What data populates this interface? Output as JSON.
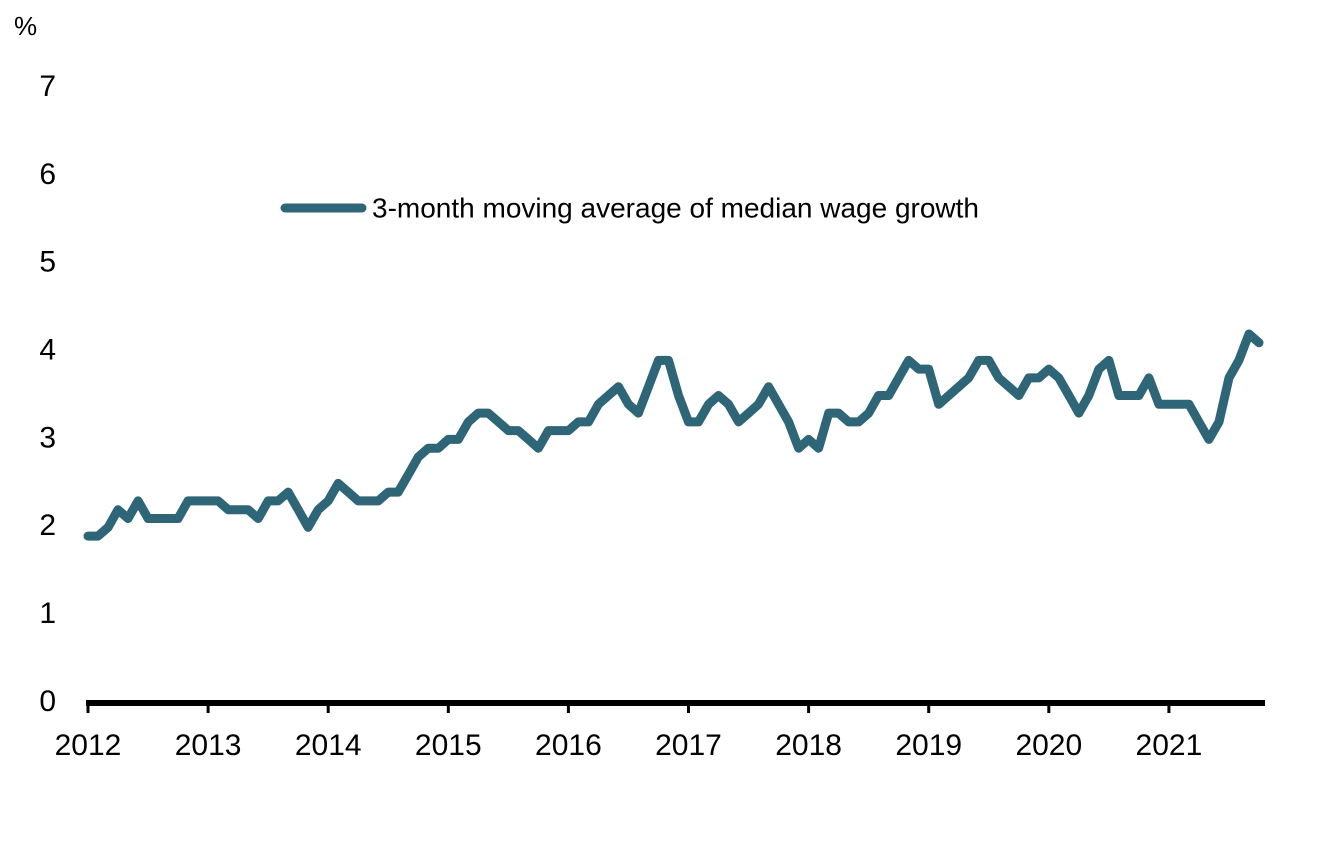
{
  "chart_data": {
    "type": "line",
    "y_axis_label": "%",
    "x": [
      2012,
      2012.083,
      2012.167,
      2012.25,
      2012.333,
      2012.417,
      2012.5,
      2012.583,
      2012.667,
      2012.75,
      2012.833,
      2012.917,
      2013,
      2013.083,
      2013.167,
      2013.25,
      2013.333,
      2013.417,
      2013.5,
      2013.583,
      2013.667,
      2013.75,
      2013.833,
      2013.917,
      2014,
      2014.083,
      2014.167,
      2014.25,
      2014.333,
      2014.417,
      2014.5,
      2014.583,
      2014.667,
      2014.75,
      2014.833,
      2014.917,
      2015,
      2015.083,
      2015.167,
      2015.25,
      2015.333,
      2015.417,
      2015.5,
      2015.583,
      2015.667,
      2015.75,
      2015.833,
      2015.917,
      2016,
      2016.083,
      2016.167,
      2016.25,
      2016.333,
      2016.417,
      2016.5,
      2016.583,
      2016.667,
      2016.75,
      2016.833,
      2016.917,
      2017,
      2017.083,
      2017.167,
      2017.25,
      2017.333,
      2017.417,
      2017.5,
      2017.583,
      2017.667,
      2017.75,
      2017.833,
      2017.917,
      2018,
      2018.083,
      2018.167,
      2018.25,
      2018.333,
      2018.417,
      2018.5,
      2018.583,
      2018.667,
      2018.75,
      2018.833,
      2018.917,
      2019,
      2019.083,
      2019.167,
      2019.25,
      2019.333,
      2019.417,
      2019.5,
      2019.583,
      2019.667,
      2019.75,
      2019.833,
      2019.917,
      2020,
      2020.083,
      2020.167,
      2020.25,
      2020.333,
      2020.417,
      2020.5,
      2020.583,
      2020.667,
      2020.75,
      2020.833,
      2020.917,
      2021,
      2021.083,
      2021.167,
      2021.25,
      2021.333,
      2021.417,
      2021.5,
      2021.583,
      2021.667,
      2021.75
    ],
    "series": [
      {
        "name": "3-month moving average of median wage growth",
        "color": "#2e6677",
        "values": [
          1.9,
          1.9,
          2.0,
          2.2,
          2.1,
          2.3,
          2.1,
          2.1,
          2.1,
          2.1,
          2.3,
          2.3,
          2.3,
          2.3,
          2.2,
          2.2,
          2.2,
          2.1,
          2.3,
          2.3,
          2.4,
          2.2,
          2.0,
          2.2,
          2.3,
          2.5,
          2.4,
          2.3,
          2.3,
          2.3,
          2.4,
          2.4,
          2.6,
          2.8,
          2.9,
          2.9,
          3.0,
          3.0,
          3.2,
          3.3,
          3.3,
          3.2,
          3.1,
          3.1,
          3.0,
          2.9,
          3.1,
          3.1,
          3.1,
          3.2,
          3.2,
          3.4,
          3.5,
          3.6,
          3.4,
          3.3,
          3.6,
          3.9,
          3.9,
          3.5,
          3.2,
          3.2,
          3.4,
          3.5,
          3.4,
          3.2,
          3.3,
          3.4,
          3.6,
          3.4,
          3.2,
          2.9,
          3.0,
          2.9,
          3.3,
          3.3,
          3.2,
          3.2,
          3.3,
          3.5,
          3.5,
          3.7,
          3.9,
          3.8,
          3.8,
          3.4,
          3.5,
          3.6,
          3.7,
          3.9,
          3.9,
          3.7,
          3.6,
          3.5,
          3.7,
          3.7,
          3.8,
          3.7,
          3.5,
          3.3,
          3.5,
          3.8,
          3.9,
          3.5,
          3.5,
          3.5,
          3.7,
          3.4,
          3.4,
          3.4,
          3.4,
          3.2,
          3.0,
          3.2,
          3.7,
          3.9,
          4.2,
          4.1
        ]
      }
    ],
    "xlim": [
      2012,
      2021.8
    ],
    "xticks": [
      2012,
      2013,
      2014,
      2015,
      2016,
      2017,
      2018,
      2019,
      2020,
      2021
    ],
    "ylim": [
      0,
      7
    ],
    "yticks": [
      0,
      1,
      2,
      3,
      4,
      5,
      6,
      7
    ],
    "grid": false,
    "legend": "top"
  }
}
